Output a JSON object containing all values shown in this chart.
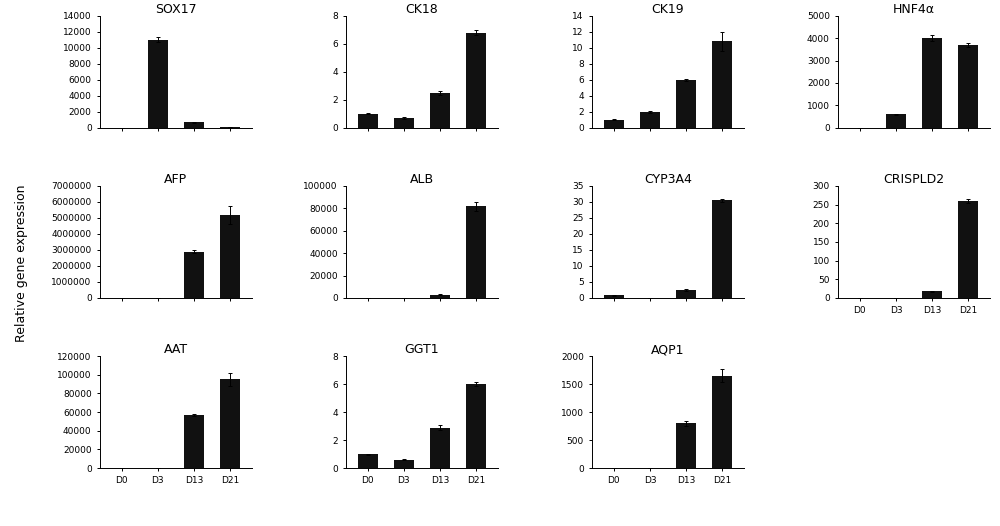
{
  "subplots": [
    {
      "title": "SOX17",
      "categories": [
        "D0",
        "D3",
        "D13",
        "D21"
      ],
      "values": [
        0,
        11000,
        700,
        100
      ],
      "errors": [
        0,
        300,
        50,
        20
      ],
      "ylim": [
        0,
        14000
      ],
      "yticks": [
        0,
        2000,
        4000,
        6000,
        8000,
        10000,
        12000,
        14000
      ],
      "row": 0,
      "col": 0
    },
    {
      "title": "CK18",
      "categories": [
        "D0",
        "D3",
        "D13",
        "D21"
      ],
      "values": [
        1.0,
        0.7,
        2.5,
        6.8
      ],
      "errors": [
        0.05,
        0.05,
        0.15,
        0.15
      ],
      "ylim": [
        0,
        8
      ],
      "yticks": [
        0,
        2,
        4,
        6,
        8
      ],
      "row": 0,
      "col": 1
    },
    {
      "title": "CK19",
      "categories": [
        "D0",
        "D3",
        "D13",
        "D21"
      ],
      "values": [
        1.0,
        2.0,
        6.0,
        10.8
      ],
      "errors": [
        0.05,
        0.1,
        0.15,
        1.2
      ],
      "ylim": [
        0,
        14
      ],
      "yticks": [
        0,
        2,
        4,
        6,
        8,
        10,
        12,
        14
      ],
      "row": 0,
      "col": 2
    },
    {
      "title": "HNF4α",
      "categories": [
        "D0",
        "D3",
        "D13",
        "D21"
      ],
      "values": [
        0,
        600,
        4000,
        3700
      ],
      "errors": [
        0,
        30,
        120,
        80
      ],
      "ylim": [
        0,
        5000
      ],
      "yticks": [
        0,
        1000,
        2000,
        3000,
        4000,
        5000
      ],
      "row": 0,
      "col": 3
    },
    {
      "title": "AFP",
      "categories": [
        "D0",
        "D3",
        "D13",
        "D21"
      ],
      "values": [
        0,
        0,
        2900000,
        5200000
      ],
      "errors": [
        0,
        0,
        120000,
        550000
      ],
      "ylim": [
        0,
        7000000
      ],
      "yticks": [
        0,
        1000000,
        2000000,
        3000000,
        4000000,
        5000000,
        6000000,
        7000000
      ],
      "row": 1,
      "col": 0
    },
    {
      "title": "ALB",
      "categories": [
        "D0",
        "D3",
        "D13",
        "D21"
      ],
      "values": [
        0,
        0,
        3000,
        82000
      ],
      "errors": [
        0,
        0,
        200,
        4000
      ],
      "ylim": [
        0,
        100000
      ],
      "yticks": [
        0,
        20000,
        40000,
        60000,
        80000,
        100000
      ],
      "row": 1,
      "col": 1
    },
    {
      "title": "CYP3A4",
      "categories": [
        "D0",
        "D3",
        "D13",
        "D21"
      ],
      "values": [
        0.8,
        0,
        2.5,
        30.5
      ],
      "errors": [
        0.05,
        0,
        0.2,
        0.4
      ],
      "ylim": [
        0,
        35
      ],
      "yticks": [
        0,
        5,
        10,
        15,
        20,
        25,
        30,
        35
      ],
      "row": 1,
      "col": 2
    },
    {
      "title": "CRISPLD2",
      "categories": [
        "D0",
        "D3",
        "D13",
        "D21"
      ],
      "values": [
        0,
        0,
        18,
        260
      ],
      "errors": [
        0,
        0,
        1.5,
        6
      ],
      "ylim": [
        0,
        300
      ],
      "yticks": [
        0,
        50,
        100,
        150,
        200,
        250,
        300
      ],
      "row": 1,
      "col": 3,
      "show_xticks": true
    },
    {
      "title": "AAT",
      "categories": [
        "D0",
        "D3",
        "D13",
        "D21"
      ],
      "values": [
        0,
        0,
        57000,
        95000
      ],
      "errors": [
        0,
        0,
        1500,
        6500
      ],
      "ylim": [
        0,
        120000
      ],
      "yticks": [
        0,
        20000,
        40000,
        60000,
        80000,
        100000,
        120000
      ],
      "row": 2,
      "col": 0
    },
    {
      "title": "GGT1",
      "categories": [
        "D0",
        "D3",
        "D13",
        "D21"
      ],
      "values": [
        1.0,
        0.6,
        2.9,
        6.0
      ],
      "errors": [
        0.04,
        0.04,
        0.18,
        0.12
      ],
      "ylim": [
        0,
        8
      ],
      "yticks": [
        0,
        2,
        4,
        6,
        8
      ],
      "row": 2,
      "col": 1
    },
    {
      "title": "AQP1",
      "categories": [
        "D0",
        "D3",
        "D13",
        "D21"
      ],
      "values": [
        0,
        0,
        800,
        1650
      ],
      "errors": [
        0,
        0,
        40,
        120
      ],
      "ylim": [
        0,
        2000
      ],
      "yticks": [
        0,
        500,
        1000,
        1500,
        2000
      ],
      "row": 2,
      "col": 2
    }
  ],
  "bar_color": "#111111",
  "bar_width": 0.55,
  "fig_width": 10.0,
  "fig_height": 5.26,
  "ylabel": "Relative gene expression",
  "background_color": "#ffffff",
  "title_fontsize": 9,
  "tick_fontsize": 6.5,
  "label_fontsize": 9,
  "nrows": 3,
  "ncols": 4
}
